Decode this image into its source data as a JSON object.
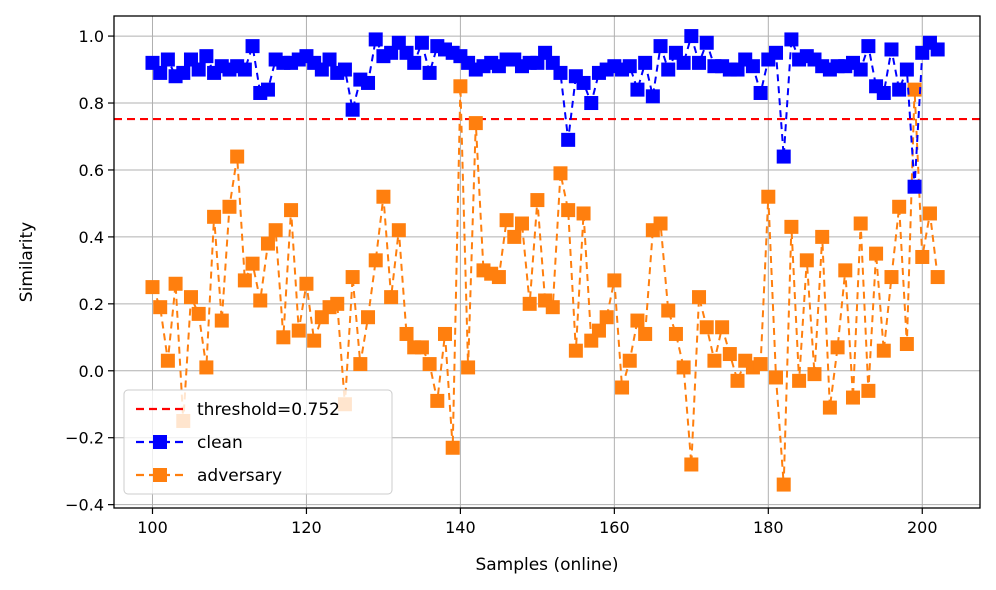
{
  "chart_data": {
    "type": "line",
    "title": "",
    "xlabel": "Samples (online)",
    "ylabel": "Similarity",
    "xlim": [
      95,
      207.5
    ],
    "ylim": [
      -0.41,
      1.06
    ],
    "xticks": [
      100,
      120,
      140,
      160,
      180,
      200
    ],
    "xtick_labels": [
      "100",
      "120",
      "140",
      "160",
      "180",
      "200"
    ],
    "yticks": [
      -0.4,
      -0.2,
      0.0,
      0.2,
      0.4,
      0.6,
      0.8,
      1.0
    ],
    "ytick_labels": [
      "−0.4",
      "−0.2",
      "0.0",
      "0.2",
      "0.4",
      "0.6",
      "0.8",
      "1.0"
    ],
    "grid": true,
    "legend_position": "lower-left",
    "x": [
      100,
      101,
      102,
      103,
      104,
      105,
      106,
      107,
      108,
      109,
      110,
      111,
      112,
      113,
      114,
      115,
      116,
      117,
      118,
      119,
      120,
      121,
      122,
      123,
      124,
      125,
      126,
      127,
      128,
      129,
      130,
      131,
      132,
      133,
      134,
      135,
      136,
      137,
      138,
      139,
      140,
      141,
      142,
      143,
      144,
      145,
      146,
      147,
      148,
      149,
      150,
      151,
      152,
      153,
      154,
      155,
      156,
      157,
      158,
      159,
      160,
      161,
      162,
      163,
      164,
      165,
      166,
      167,
      168,
      169,
      170,
      171,
      172,
      173,
      174,
      175,
      176,
      177,
      178,
      179,
      180,
      181,
      182,
      183,
      184,
      185,
      186,
      187,
      188,
      189,
      190,
      191,
      192,
      193,
      194,
      195,
      196,
      197,
      198,
      199,
      200,
      201,
      202
    ],
    "threshold": {
      "name": "threshold=0.752",
      "value": 0.752,
      "color": "#ff0000"
    },
    "series": [
      {
        "name": "clean",
        "color": "#0000ff",
        "values": [
          0.92,
          0.89,
          0.93,
          0.88,
          0.89,
          0.93,
          0.9,
          0.94,
          0.89,
          0.91,
          0.9,
          0.91,
          0.9,
          0.97,
          0.83,
          0.84,
          0.93,
          0.92,
          0.92,
          0.93,
          0.94,
          0.92,
          0.9,
          0.93,
          0.89,
          0.9,
          0.78,
          0.87,
          0.86,
          0.99,
          0.94,
          0.95,
          0.98,
          0.95,
          0.92,
          0.98,
          0.89,
          0.97,
          0.96,
          0.95,
          0.94,
          0.92,
          0.9,
          0.91,
          0.92,
          0.91,
          0.93,
          0.93,
          0.91,
          0.92,
          0.92,
          0.95,
          0.92,
          0.89,
          0.69,
          0.88,
          0.86,
          0.8,
          0.89,
          0.9,
          0.91,
          0.9,
          0.91,
          0.84,
          0.92,
          0.82,
          0.97,
          0.9,
          0.95,
          0.92,
          1.0,
          0.92,
          0.98,
          0.91,
          0.91,
          0.9,
          0.9,
          0.93,
          0.91,
          0.83,
          0.93,
          0.95,
          0.64,
          0.99,
          0.93,
          0.94,
          0.93,
          0.91,
          0.9,
          0.91,
          0.91,
          0.92,
          0.9,
          0.97,
          0.85,
          0.83,
          0.96,
          0.84,
          0.9,
          0.55,
          0.95,
          0.98,
          0.96
        ]
      },
      {
        "name": "adversary",
        "color": "#ff7f0e",
        "values": [
          0.25,
          0.19,
          0.03,
          0.26,
          -0.15,
          0.22,
          0.17,
          0.01,
          0.46,
          0.15,
          0.49,
          0.64,
          0.27,
          0.32,
          0.21,
          0.38,
          0.42,
          0.1,
          0.48,
          0.12,
          0.26,
          0.09,
          0.16,
          0.19,
          0.2,
          -0.1,
          0.28,
          0.02,
          0.16,
          0.33,
          0.52,
          0.22,
          0.42,
          0.11,
          0.07,
          0.07,
          0.02,
          -0.09,
          0.11,
          -0.23,
          0.85,
          0.01,
          0.74,
          0.3,
          0.29,
          0.28,
          0.45,
          0.4,
          0.44,
          0.2,
          0.51,
          0.21,
          0.19,
          0.59,
          0.48,
          0.06,
          0.47,
          0.09,
          0.12,
          0.16,
          0.27,
          -0.05,
          0.03,
          0.15,
          0.11,
          0.42,
          0.44,
          0.18,
          0.11,
          0.01,
          -0.28,
          0.22,
          0.13,
          0.03,
          0.13,
          0.05,
          -0.03,
          0.03,
          0.01,
          0.02,
          0.52,
          -0.02,
          -0.34,
          0.43,
          -0.03,
          0.33,
          -0.01,
          0.4,
          -0.11,
          0.07,
          0.3,
          -0.08,
          0.44,
          -0.06,
          0.35,
          0.06,
          0.28,
          0.49,
          0.08,
          0.84,
          0.34,
          0.47,
          0.28
        ]
      }
    ]
  }
}
